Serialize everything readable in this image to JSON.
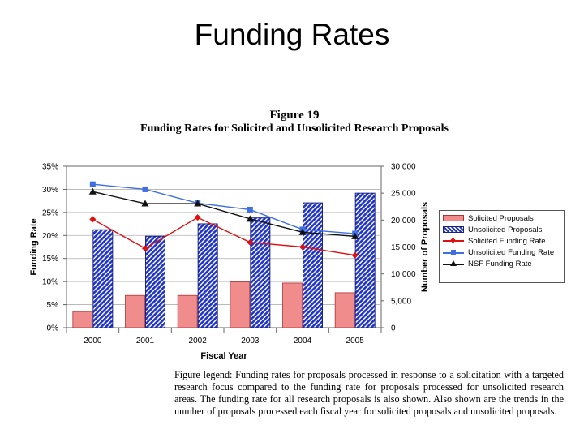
{
  "slide": {
    "title": "Funding Rates"
  },
  "figure": {
    "number": "Figure 19",
    "title": "Funding Rates for Solicited and Unsolicited Research Proposals",
    "legend_text": "Figure legend:  Funding rates for proposals processed in response to a solicitation with a targeted research focus compared to the funding rate for proposals processed for unsolicited research areas.  The funding rate for all research proposals is also shown.  Also shown are the trends in the number of proposals processed each fiscal year for solicited proposals and unsolicited proposals."
  },
  "chart_data": {
    "type": "bar",
    "categories": [
      "2000",
      "2001",
      "2002",
      "2003",
      "2004",
      "2005"
    ],
    "xlabel": "Fiscal Year",
    "ylabel": "Funding Rate",
    "y2label": "Number of Proposals",
    "ylim": [
      0,
      0.35
    ],
    "y2lim": [
      0,
      30000
    ],
    "y_ticks": [
      "0%",
      "5%",
      "10%",
      "15%",
      "20%",
      "25%",
      "30%",
      "35%"
    ],
    "y2_ticks": [
      "0",
      "5,000",
      "10,000",
      "15,000",
      "20,000",
      "25,000",
      "30,000"
    ],
    "grid": true,
    "legend_position": "right",
    "series": [
      {
        "name": "Solicited Proposals",
        "kind": "bar",
        "axis": "right",
        "color": "#f08c8c",
        "values": [
          3000,
          6000,
          6000,
          8500,
          8300,
          6500
        ]
      },
      {
        "name": "Unsolicited Proposals",
        "kind": "bar",
        "axis": "right",
        "color": "#2035c8",
        "values": [
          18200,
          17000,
          19300,
          20400,
          23200,
          25000
        ]
      },
      {
        "name": "Solicited Funding Rate",
        "kind": "line",
        "axis": "left",
        "color": "#e01010",
        "marker": "diamond",
        "values": [
          0.235,
          0.172,
          0.239,
          0.185,
          0.175,
          0.157
        ]
      },
      {
        "name": "Unsolicited Funding Rate",
        "kind": "line",
        "axis": "left",
        "color": "#3f6fe0",
        "marker": "square",
        "values": [
          0.311,
          0.3,
          0.27,
          0.256,
          0.213,
          0.204
        ]
      },
      {
        "name": "NSF Funding Rate",
        "kind": "line",
        "axis": "left",
        "color": "#111111",
        "marker": "triangle",
        "values": [
          0.295,
          0.269,
          0.269,
          0.236,
          0.207,
          0.198
        ]
      }
    ]
  }
}
